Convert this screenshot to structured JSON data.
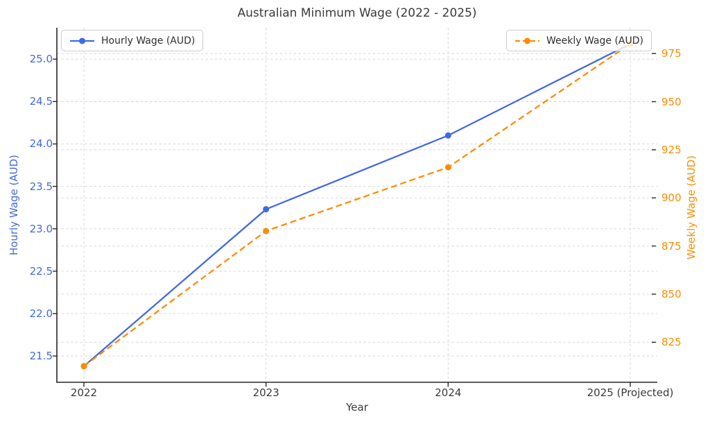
{
  "chart_data": {
    "type": "line",
    "title": "Australian Minimum Wage (2022 - 2025)",
    "xlabel": "Year",
    "categories": [
      "2022",
      "2023",
      "2024",
      "2025 (Projected)"
    ],
    "series": [
      {
        "name": "Hourly Wage (AUD)",
        "axis": "left",
        "color": "#4169e1",
        "line_style": "solid",
        "marker": "circle",
        "values": [
          21.38,
          23.23,
          24.1,
          25.18
        ]
      },
      {
        "name": "Weekly Wage (AUD)",
        "axis": "right",
        "color": "#ff8c00",
        "line_style": "dashed",
        "marker": "circle",
        "values": [
          812.6,
          882.8,
          915.9,
          980.0
        ]
      }
    ],
    "left_axis": {
      "label": "Hourly Wage (AUD)",
      "color": "#4169e1",
      "ticks": [
        21.5,
        22.0,
        22.5,
        23.0,
        23.5,
        24.0,
        24.5,
        25.0
      ],
      "tick_labels": [
        "21.5",
        "22.0",
        "22.5",
        "23.0",
        "23.5",
        "24.0",
        "24.5",
        "25.0"
      ],
      "ylim": [
        21.19,
        25.37
      ]
    },
    "right_axis": {
      "label": "Weekly Wage (AUD)",
      "color": "#ff8c00",
      "ticks": [
        825,
        850,
        875,
        900,
        925,
        950,
        975
      ],
      "tick_labels": [
        "825",
        "850",
        "875",
        "900",
        "925",
        "950",
        "975"
      ],
      "ylim": [
        804.2,
        988.4
      ]
    },
    "grid": true,
    "legend": [
      {
        "label": "Hourly Wage (AUD)",
        "position": "upper-left"
      },
      {
        "label": "Weekly Wage (AUD)",
        "position": "upper-right"
      }
    ],
    "style": {
      "grid_color": "#d8d8d8",
      "spine_color": "#262626",
      "text_color": "#3a3a3a"
    }
  }
}
